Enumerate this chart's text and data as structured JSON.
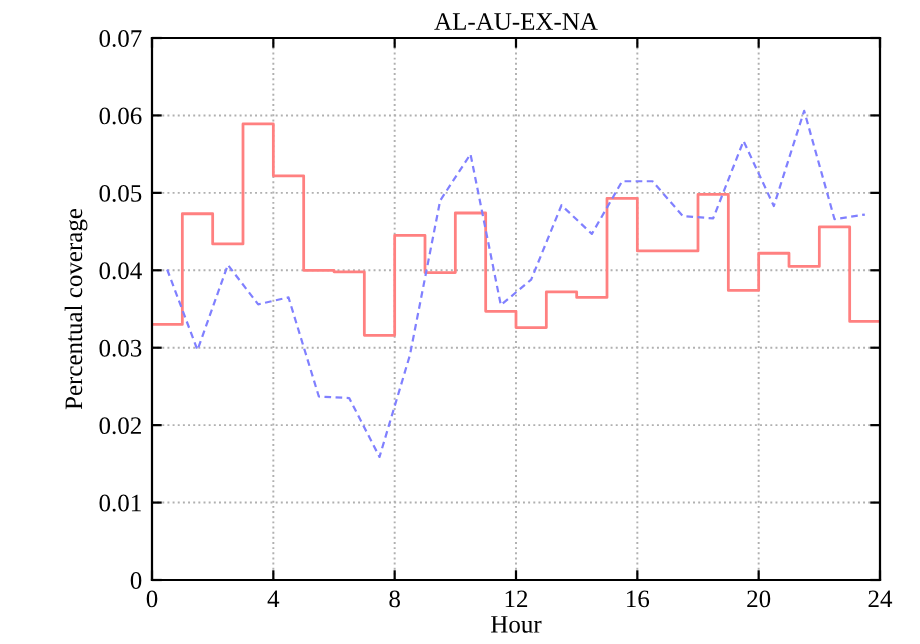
{
  "chart_data": {
    "type": "line",
    "title": "AL-AU-EX-NA",
    "xlabel": "Hour",
    "ylabel": "Percentual coverage",
    "xlim": [
      0,
      24
    ],
    "xticks": [
      0,
      4,
      8,
      12,
      16,
      20,
      24
    ],
    "ylim": [
      0,
      0.07
    ],
    "yticks": [
      0,
      0.01,
      0.02,
      0.03,
      0.04,
      0.05,
      0.06,
      0.07
    ],
    "grid": true,
    "series": [
      {
        "type": "step",
        "color": "#ff8080",
        "line_style": "solid",
        "x": [
          0,
          1,
          2,
          3,
          4,
          5,
          6,
          7,
          8,
          9,
          10,
          11,
          12,
          13,
          14,
          15,
          16,
          17,
          18,
          19,
          20,
          21,
          22,
          23,
          24
        ],
        "values": [
          0.033,
          0.0473,
          0.0434,
          0.0589,
          0.0522,
          0.04,
          0.0398,
          0.0316,
          0.0445,
          0.0397,
          0.0474,
          0.0347,
          0.0326,
          0.0372,
          0.0365,
          0.0493,
          0.0425,
          0.0425,
          0.0498,
          0.0374,
          0.0422,
          0.0405,
          0.0456,
          0.0334,
          0.0334
        ]
      },
      {
        "color": "#8080ff",
        "line_style": "dashed",
        "x": [
          0.5,
          1.5,
          2.5,
          3.5,
          4.5,
          5.5,
          6.5,
          7.5,
          8.5,
          9.5,
          10.5,
          11.5,
          12.5,
          13.5,
          14.5,
          15.5,
          16.5,
          17.5,
          18.5,
          19.5,
          20.5,
          21.5,
          22.5,
          23.5
        ],
        "values": [
          0.0401,
          0.0297,
          0.0407,
          0.0356,
          0.0365,
          0.0237,
          0.0235,
          0.0159,
          0.029,
          0.049,
          0.055,
          0.0355,
          0.0388,
          0.0484,
          0.0447,
          0.0515,
          0.0515,
          0.047,
          0.0467,
          0.0567,
          0.0483,
          0.0606,
          0.0466,
          0.0472
        ]
      }
    ]
  }
}
